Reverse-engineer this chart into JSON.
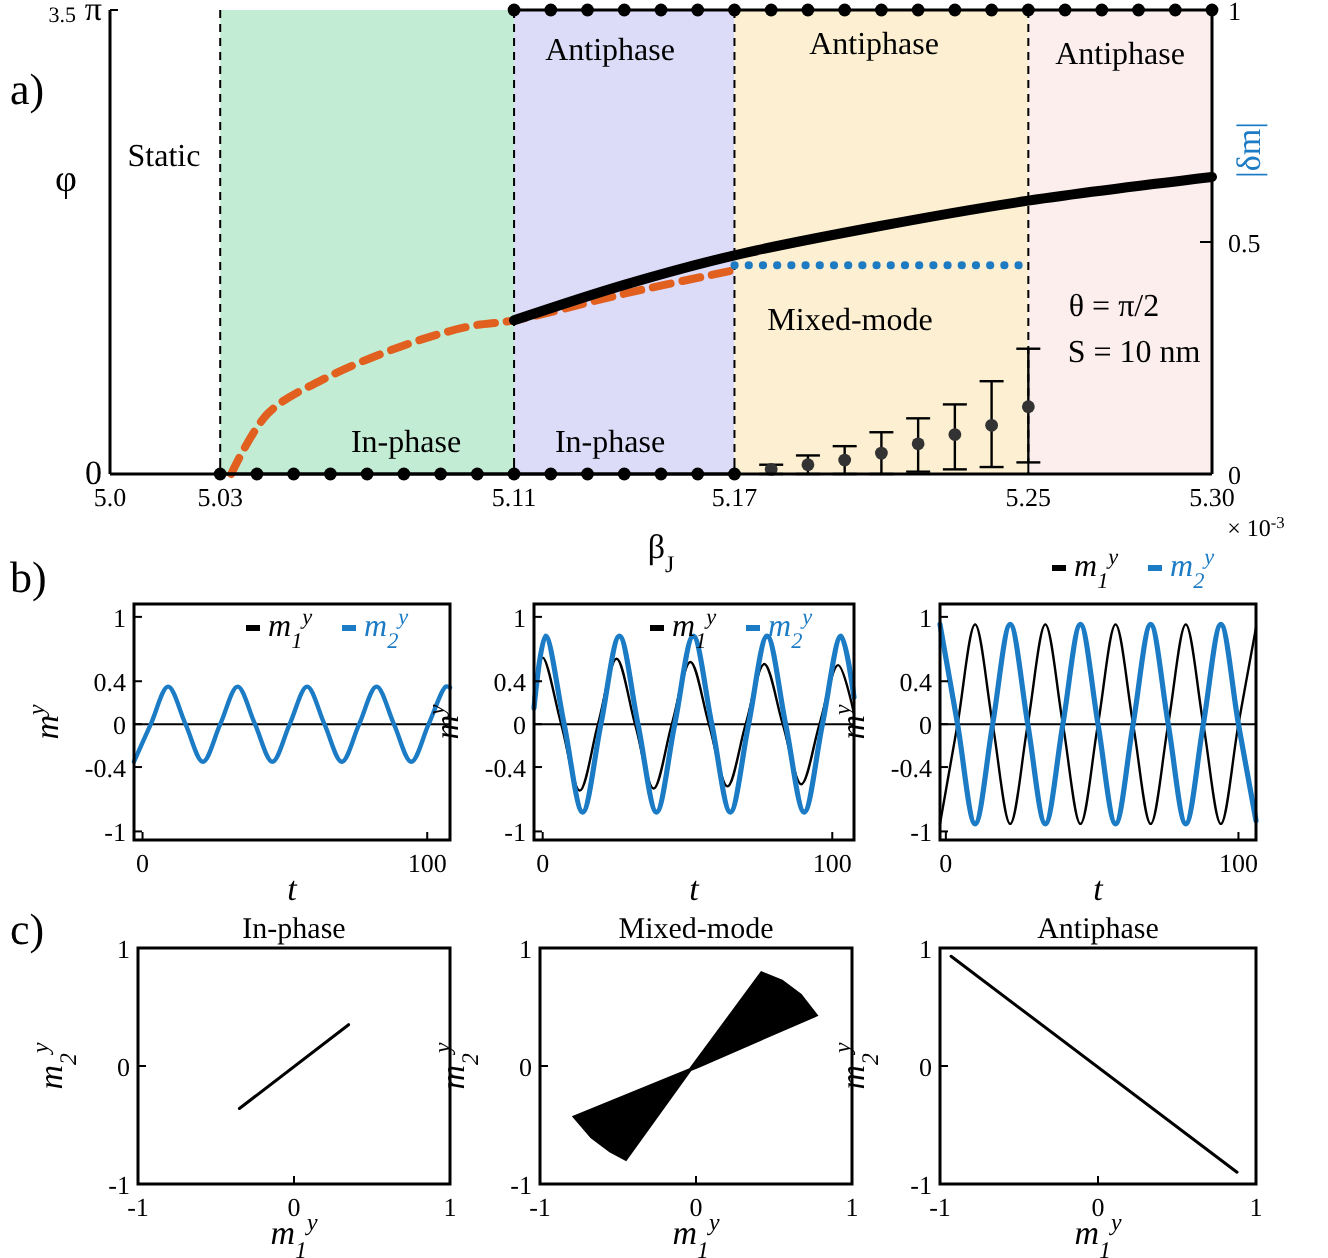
{
  "chart_data": [
    {
      "type": "line",
      "xlabel": "β$_{J}$",
      "ylabel": "φ",
      "y2label": "|δm|",
      "xlim": [
        5.0,
        5.3
      ],
      "xticks": [
        {
          "value": 5.0,
          "label": "5.0"
        },
        5.03,
        5.11,
        5.17,
        5.25,
        {
          "value": 5.3,
          "label": "5.30"
        }
      ],
      "ylim": [
        0,
        3.14
      ],
      "yticks": [
        0,
        {
          "value": 3.14,
          "label": "π"
        }
      ],
      "y2lim": [
        0,
        1
      ],
      "y2ticks": [
        0,
        0.5,
        1
      ],
      "bands": [
        {
          "axis": "x",
          "from": 5.03,
          "to": 5.11,
          "color": "#c3ecd4"
        },
        {
          "axis": "x",
          "from": 5.11,
          "to": 5.17,
          "color": "#dddcf8"
        },
        {
          "axis": "x",
          "from": 5.17,
          "to": 5.25,
          "color": "#fdf0d2"
        },
        {
          "axis": "x",
          "from": 5.25,
          "to": 5.3,
          "color": "#fdeeee"
        }
      ],
      "ref_lines": [
        {
          "axis": "x",
          "value": 5.03,
          "line_style": "dashed",
          "color": "#000000"
        },
        {
          "axis": "x",
          "value": 5.11,
          "line_style": "dashed",
          "color": "#000000"
        },
        {
          "axis": "x",
          "value": 5.17,
          "line_style": "dashed",
          "color": "#000000"
        },
        {
          "axis": "x",
          "value": 5.25,
          "line_style": "dashed",
          "color": "#000000"
        }
      ],
      "series": [
        {
          "type": "line",
          "color": "#e2601f",
          "line_style": "dashed",
          "marker": "none",
          "x": [
            5.033,
            5.043,
            5.058,
            5.08,
            5.098,
            5.11,
            5.14,
            5.17
          ],
          "values": [
            0,
            0.41,
            0.64,
            0.87,
            1.0,
            1.04,
            1.22,
            1.38
          ]
        },
        {
          "type": "line",
          "color": "#000000",
          "line_style": "solid",
          "marker": "none",
          "x": [
            5.11,
            5.14,
            5.17,
            5.21,
            5.25,
            5.3
          ],
          "values": [
            1.04,
            1.28,
            1.48,
            1.68,
            1.85,
            2.01
          ]
        },
        {
          "type": "line",
          "color": "#1f7bc1",
          "line_style": "dotted",
          "marker": "none",
          "axis": "y2",
          "x": [
            5.17,
            5.25
          ],
          "values": [
            0.45,
            0.45
          ]
        },
        {
          "type": "line",
          "color": "#000000",
          "line_style": "solid",
          "marker": "circle",
          "x": [
            5.11,
            5.12,
            5.13,
            5.14,
            5.15,
            5.16,
            5.17,
            5.18,
            5.19,
            5.2,
            5.21,
            5.22,
            5.23,
            5.24,
            5.25,
            5.26,
            5.27,
            5.28,
            5.29,
            5.3
          ],
          "values": [
            3.14,
            3.14,
            3.14,
            3.14,
            3.14,
            3.14,
            3.14,
            3.14,
            3.14,
            3.14,
            3.14,
            3.14,
            3.14,
            3.14,
            3.14,
            3.14,
            3.14,
            3.14,
            3.14,
            3.14
          ]
        },
        {
          "type": "line",
          "color": "#000000",
          "line_style": "solid",
          "marker": "circle",
          "x": [
            5.03,
            5.04,
            5.05,
            5.06,
            5.07,
            5.08,
            5.09,
            5.1,
            5.11,
            5.12,
            5.13,
            5.14,
            5.15,
            5.16,
            5.17
          ],
          "values": [
            0,
            0,
            0,
            0,
            0,
            0,
            0,
            0,
            0,
            0,
            0,
            0,
            0,
            0,
            0
          ]
        },
        {
          "type": "scatter",
          "color": "#333333",
          "marker": "circle",
          "axis": "y2",
          "x": [
            5.18,
            5.19,
            5.2,
            5.21,
            5.22,
            5.23,
            5.24,
            5.25
          ],
          "values": [
            0.01,
            0.02,
            0.03,
            0.045,
            0.065,
            0.085,
            0.105,
            0.145
          ],
          "errors": [
            [
              0,
              0.02
            ],
            [
              0,
              0.04
            ],
            [
              0,
              0.06
            ],
            [
              0,
              0.09
            ],
            [
              0.005,
              0.12
            ],
            [
              0.01,
              0.15
            ],
            [
              0.015,
              0.2
            ],
            [
              0.025,
              0.27
            ]
          ]
        }
      ],
      "annotations": [
        "a)",
        "3.5",
        "× 10$^{-3}$",
        "Static",
        "In-phase",
        "In-phase",
        "Antiphase",
        "Antiphase",
        "Antiphase",
        "Mixed-mode",
        "θ = π/2",
        "S = 10 nm"
      ]
    },
    {
      "type": "line",
      "xlabel": "t",
      "ylabel": "m$^{y}$",
      "xlim": [
        -3,
        108
      ],
      "xticks": [
        0,
        100
      ],
      "ylim": [
        -1.08,
        1.12
      ],
      "yticks": [
        -1,
        -0.4,
        0,
        0.4,
        1
      ],
      "legend": "top right",
      "ref_lines": [
        {
          "axis": "y",
          "value": 0,
          "color": "#000000"
        }
      ],
      "annotations": [
        "b)"
      ],
      "series": [
        {
          "name": "m$_{1}$$^{y}$",
          "color": "#000000"
        },
        {
          "name": "m$_{2}$$^{y}$",
          "color": "#1b7bc4",
          "x": [
            -3,
            2.9,
            9,
            15.1,
            21.2,
            27.3,
            33.4,
            39.5,
            45.6,
            51.7,
            57.8,
            63.9,
            70,
            76.1,
            82.2,
            88.3,
            94.4,
            100.5,
            106.6,
            108
          ],
          "values": [
            -0.35,
            0,
            0.35,
            0,
            -0.35,
            0,
            0.35,
            0,
            -0.35,
            0,
            0.35,
            0,
            -0.35,
            0,
            0.35,
            0,
            -0.35,
            0,
            0.35,
            0.34
          ]
        }
      ]
    },
    {
      "type": "line",
      "xlabel": "t",
      "ylabel": "m$^{y}$",
      "xlim": [
        -3,
        107.5
      ],
      "xticks": [
        0,
        100
      ],
      "ylim": [
        -1.08,
        1.12
      ],
      "yticks": [
        -1,
        -0.4,
        0,
        0.4,
        1
      ],
      "legend": "top right",
      "ref_lines": [
        {
          "axis": "y",
          "value": 0,
          "color": "#000000"
        }
      ],
      "series": [
        {
          "name": "m$_{1}$$^{y}$",
          "color": "#000000",
          "x": [
            -3,
            0,
            6.4,
            12.8,
            19.1,
            25.5,
            31.9,
            38.3,
            44.6,
            51,
            57.4,
            63.8,
            70.1,
            76.5,
            82.9,
            89.3,
            95.6,
            102,
            107.5
          ],
          "values": [
            0.25,
            0.62,
            0,
            -0.62,
            0,
            0.61,
            0,
            -0.6,
            0,
            0.58,
            0,
            -0.58,
            0,
            0.56,
            0,
            -0.56,
            0,
            0.55,
            0.1
          ]
        },
        {
          "name": "m$_{2}$$^{y}$",
          "color": "#1b7bc4",
          "x": [
            -3,
            1,
            7.4,
            13.8,
            20.1,
            26.5,
            32.9,
            39.3,
            45.6,
            52,
            58.4,
            64.8,
            71.1,
            77.5,
            83.9,
            90.3,
            96.6,
            103,
            107.5
          ],
          "values": [
            0.15,
            0.82,
            0,
            -0.82,
            0,
            0.82,
            0,
            -0.82,
            0,
            0.82,
            0,
            -0.82,
            0,
            0.82,
            0,
            -0.82,
            0,
            0.82,
            0.25
          ]
        }
      ]
    },
    {
      "type": "line",
      "xlabel": "t",
      "ylabel": "m$^{y}$",
      "xlim": [
        -2,
        106
      ],
      "xticks": [
        0,
        100
      ],
      "ylim": [
        -1.08,
        1.12
      ],
      "yticks": [
        -1,
        -0.4,
        0,
        0.4,
        1
      ],
      "legend": "top",
      "ref_lines": [
        {
          "axis": "y",
          "value": 0,
          "color": "#000000"
        }
      ],
      "series": [
        {
          "name": "m$_{1}$$^{y}$",
          "color": "#000000",
          "x": [
            -2,
            4,
            10,
            16,
            22,
            28,
            34,
            40,
            46,
            52,
            58,
            64,
            70,
            76,
            82,
            88,
            94,
            100,
            106
          ],
          "values": [
            -0.93,
            0,
            0.93,
            0,
            -0.93,
            0,
            0.93,
            0,
            -0.93,
            0,
            0.93,
            0,
            -0.93,
            0,
            0.93,
            0,
            -0.93,
            0,
            0.9
          ]
        },
        {
          "name": "m$_{2}$$^{y}$",
          "color": "#1b7bc4",
          "x": [
            -2,
            4,
            10,
            16,
            22,
            28,
            34,
            40,
            46,
            52,
            58,
            64,
            70,
            76,
            82,
            88,
            94,
            100,
            106
          ],
          "values": [
            0.93,
            0,
            -0.93,
            0,
            0.93,
            0,
            -0.93,
            0,
            0.93,
            0,
            -0.93,
            0,
            0.93,
            0,
            -0.93,
            0,
            0.93,
            0,
            -0.9
          ]
        }
      ]
    },
    {
      "type": "line",
      "title": "In-phase",
      "xlabel": "m$_{1}$$^{y}$",
      "ylabel": "m$_{2}$$^{y}$",
      "xlim": [
        -1,
        1
      ],
      "xticks": [
        -1,
        0,
        1
      ],
      "ylim": [
        -1,
        1
      ],
      "yticks": [
        -1,
        0,
        1
      ],
      "annotations": [
        "c)"
      ],
      "series": [
        {
          "color": "#000000",
          "x": [
            -0.35,
            0.35
          ],
          "values": [
            -0.36,
            0.35
          ]
        }
      ]
    },
    {
      "type": "area",
      "title": "Mixed-mode",
      "xlabel": "m$_{1}$$^{y}$",
      "ylabel": "m$_{2}$$^{y}$",
      "xlim": [
        -1,
        1
      ],
      "xticks": [
        -1,
        0,
        1
      ],
      "ylim": [
        -1,
        1
      ],
      "yticks": [
        -1,
        0,
        1
      ],
      "series": [
        {
          "color": "#000000",
          "x": [
            0.42,
            0.55,
            0.67,
            0.77,
            0.02,
            -0.78,
            -0.67,
            -0.55,
            -0.45,
            -0.02
          ],
          "values": [
            0.79,
            0.72,
            0.6,
            0.43,
            0.0,
            -0.43,
            -0.6,
            -0.72,
            -0.79,
            0.0
          ]
        }
      ]
    },
    {
      "type": "line",
      "title": "Antiphase",
      "xlabel": "m$_{1}$$^{y}$",
      "ylabel": "m$_{2}$$^{y}$",
      "xlim": [
        -1,
        1
      ],
      "xticks": [
        -1,
        0,
        1
      ],
      "ylim": [
        -1,
        1
      ],
      "yticks": [
        -1,
        0,
        1
      ],
      "series": [
        {
          "color": "#000000",
          "x": [
            -0.93,
            0.88
          ],
          "values": [
            0.93,
            -0.9
          ]
        }
      ]
    }
  ]
}
